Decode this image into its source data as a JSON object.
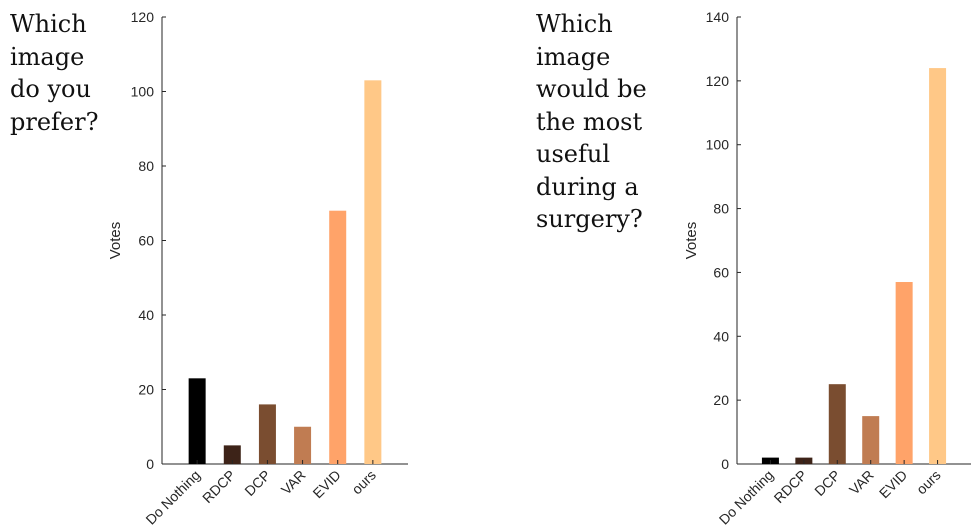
{
  "questions": {
    "left": "Which\nimage\ndo you\nprefer?",
    "right": "Which\nimage\nwould be\nthe most\nuseful\nduring a\nsurgery?"
  },
  "chart_data": [
    {
      "type": "bar",
      "categories": [
        "Do Nothing",
        "RDCP",
        "DCP",
        "VAR",
        "EVID",
        "ours"
      ],
      "values": [
        23,
        5,
        16,
        10,
        68,
        103
      ],
      "colors": [
        "#000000",
        "#3d2318",
        "#7a4d30",
        "#c07c52",
        "#ffa369",
        "#ffc887"
      ],
      "ylabel": "Votes",
      "ylim": [
        0,
        120
      ],
      "yticks": [
        0,
        20,
        40,
        60,
        80,
        100,
        120
      ],
      "grid": false,
      "legend": "none"
    },
    {
      "type": "bar",
      "categories": [
        "Do Nothing",
        "RDCP",
        "DCP",
        "VAR",
        "EVID",
        "ours"
      ],
      "values": [
        2,
        2,
        25,
        15,
        57,
        124
      ],
      "colors": [
        "#000000",
        "#3d2318",
        "#7a4d30",
        "#c07c52",
        "#ffa369",
        "#ffc887"
      ],
      "ylabel": "Votes",
      "ylim": [
        0,
        140
      ],
      "yticks": [
        0,
        20,
        40,
        60,
        80,
        100,
        120,
        140
      ],
      "grid": false,
      "legend": "none"
    }
  ]
}
